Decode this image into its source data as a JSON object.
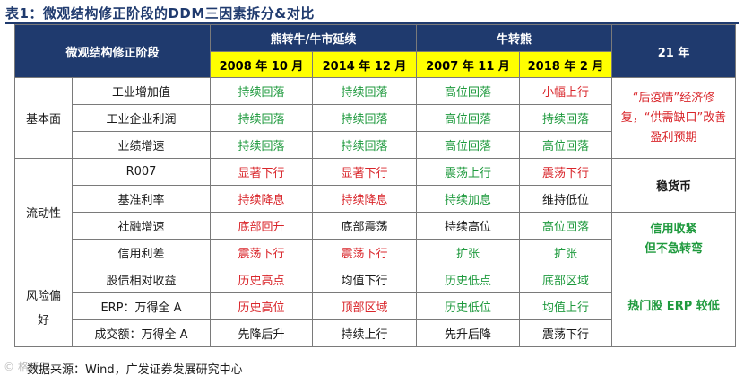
{
  "title": "表1：微观结构修正阶段的DDM三因素拆分&对比",
  "header": {
    "corner": "微观结构修正阶段",
    "group1": "熊转牛/牛市延续",
    "group2": "牛转熊",
    "year21": "21 年",
    "periods": [
      "2008 年 10 月",
      "2014 年 12 月",
      "2007 年 11 月",
      "2018 年 2 月"
    ]
  },
  "categories": {
    "fundamentals": "基本面",
    "liquidity": "流动性",
    "risk_pref_line1": "风险偏",
    "risk_pref_line2": "好"
  },
  "rows": [
    {
      "indicator": "工业增加值",
      "cells": [
        "持续回落",
        "持续回落",
        "高位回落",
        "小幅上行"
      ]
    },
    {
      "indicator": "工业企业利润",
      "cells": [
        "持续回落",
        "持续回落",
        "高位回落",
        "持续回落"
      ]
    },
    {
      "indicator": "业绩增速",
      "cells": [
        "持续回落",
        "持续回落",
        "高位回落",
        "高位回落"
      ]
    },
    {
      "indicator": "R007",
      "cells": [
        "显著下行",
        "显著下行",
        "震荡上行",
        "震荡下行"
      ]
    },
    {
      "indicator": "基准利率",
      "cells": [
        "持续降息",
        "持续降息",
        "持续加息",
        "维持低位"
      ]
    },
    {
      "indicator": "社融增速",
      "cells": [
        "底部回升",
        "底部震荡",
        "持续高位",
        "高位回落"
      ]
    },
    {
      "indicator": "信用利差",
      "cells": [
        "震荡下行",
        "震荡下行",
        "扩张",
        "扩张"
      ]
    },
    {
      "indicator": "股债相对收益",
      "cells": [
        "历史高点",
        "均值下行",
        "历史低点",
        "底部区域"
      ]
    },
    {
      "indicator": "ERP：万得全 A",
      "cells": [
        "历史高位",
        "顶部区域",
        "历史低位",
        "均值上行"
      ]
    },
    {
      "indicator": "成交额：万得全 A",
      "cells": [
        "先降后升",
        "持续上行",
        "先升后降",
        "震荡下行"
      ]
    }
  ],
  "notes": {
    "fundamentals": "“后疫情”经济修复，“供需缺口”改善盈利预期",
    "liquidity1": "稳货币",
    "liquidity2_line1": "信用收紧",
    "liquidity2_line2": "但不急转弯",
    "risk": "热门股 ERP 较低"
  },
  "source": "数据来源：Wind，广发证券发展研究中心",
  "watermark": "© 格隆汇",
  "colors": {
    "header_bg": "#1f3a6e",
    "year_bg": "#ffff00",
    "red": "#d9262b",
    "green": "#1f9a3e"
  }
}
